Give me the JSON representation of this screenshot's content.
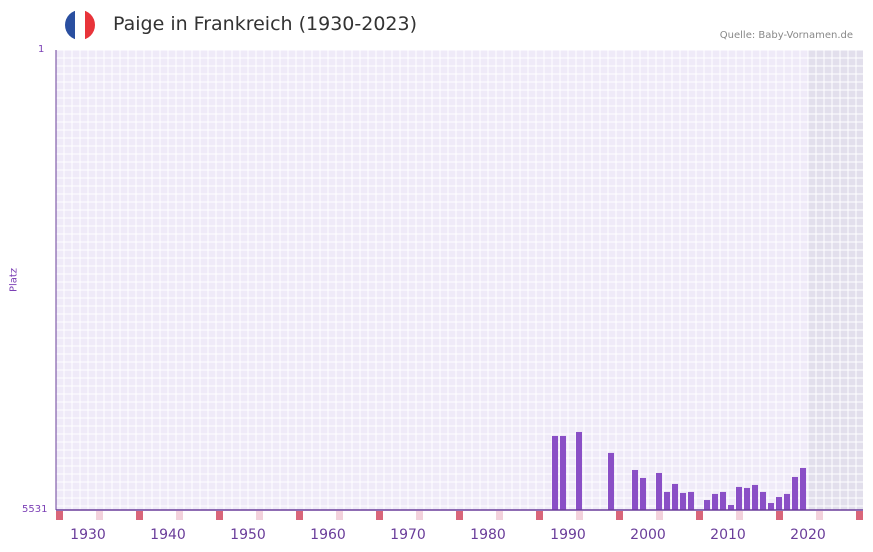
{
  "header": {
    "title": "Paige in Frankreich (1930-2023)",
    "source": "Quelle: Baby-Vornamen.de",
    "flag_colors": [
      "#2a4fa0",
      "#ffffff",
      "#e8343a"
    ]
  },
  "axes": {
    "ylabel": "Platz",
    "ytick_top": "1",
    "ytick_bottom": "5531",
    "xticks": [
      "1930",
      "1940",
      "1950",
      "1960",
      "1970",
      "1980",
      "1990",
      "2000",
      "2010",
      "2020"
    ]
  },
  "colors": {
    "bar": "#8a4fc6",
    "axis": "#6a3d9a",
    "grid_bg": "#efeaf8",
    "future_bg": "#e2dfec",
    "marker_strong": "#d9667a",
    "marker_light": "#f3d2dc"
  },
  "chart_data": {
    "type": "bar",
    "title": "Paige in Frankreich (1930-2023)",
    "xlabel": "",
    "ylabel": "Platz",
    "ylim": [
      5531,
      1
    ],
    "y_inverted": true,
    "x_range": [
      1928,
      2028
    ],
    "shaded_future_from": 2022,
    "grid": true,
    "categories": [
      1990,
      1991,
      1993,
      1997,
      2000,
      2001,
      2003,
      2004,
      2005,
      2006,
      2007,
      2009,
      2010,
      2011,
      2012,
      2013,
      2014,
      2015,
      2016,
      2017,
      2018,
      2019,
      2020,
      2021
    ],
    "values": [
      4641,
      4641,
      4593,
      4845,
      5050,
      5146,
      5086,
      5314,
      5218,
      5326,
      5314,
      5411,
      5338,
      5314,
      5471,
      5254,
      5266,
      5230,
      5314,
      5447,
      5375,
      5338,
      5134,
      5026
    ]
  }
}
